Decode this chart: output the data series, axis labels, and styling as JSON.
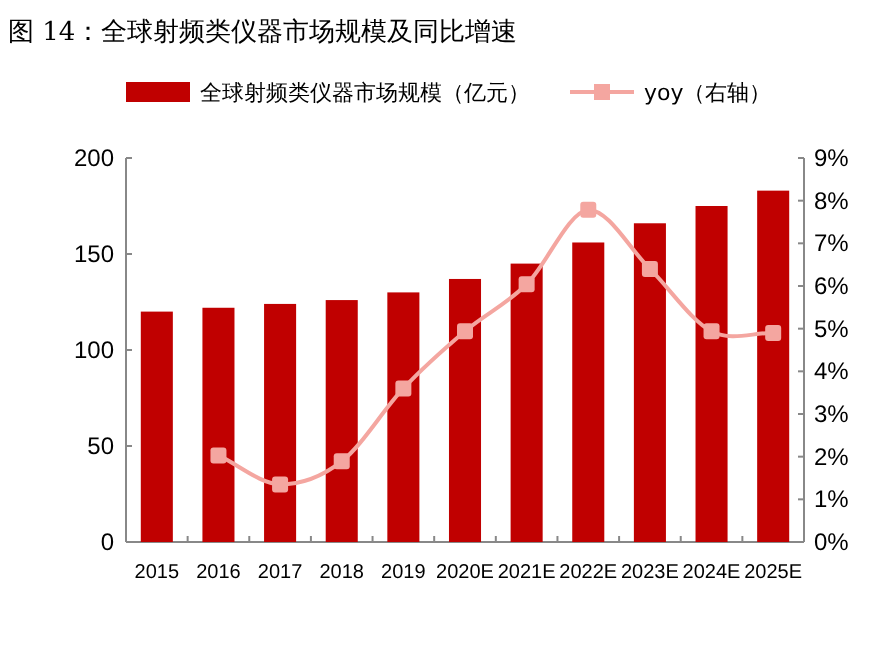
{
  "chart_data": {
    "type": "bar",
    "title": "图 14：全球射频类仪器市场规模及同比增速",
    "categories": [
      "2015",
      "2016",
      "2017",
      "2018",
      "2019",
      "2020E",
      "2021E",
      "2022E",
      "2023E",
      "2024E",
      "2025E"
    ],
    "series": [
      {
        "name": "全球射频类仪器市场规模（亿元）",
        "color": "#c00000",
        "values": [
          120,
          122,
          124,
          126,
          130,
          137,
          145,
          156,
          166,
          175,
          183
        ]
      },
      {
        "name": "yoy（右轴）",
        "type": "line",
        "axis": "y2",
        "color": "#f4a6a0",
        "marker": "square",
        "values": [
          null,
          2.03,
          1.35,
          1.89,
          3.6,
          4.94,
          6.04,
          7.79,
          6.4,
          4.94,
          4.9
        ]
      }
    ],
    "ylim": [
      0,
      200
    ],
    "yticks": [
      0,
      50,
      100,
      150,
      200
    ],
    "y2lim": [
      0,
      9
    ],
    "y2ticks": [
      {
        "value": 0,
        "label": "0%"
      },
      {
        "value": 1,
        "label": "1%"
      },
      {
        "value": 2,
        "label": "2%"
      },
      {
        "value": 3,
        "label": "3%"
      },
      {
        "value": 4,
        "label": "4%"
      },
      {
        "value": 5,
        "label": "5%"
      },
      {
        "value": 6,
        "label": "6%"
      },
      {
        "value": 7,
        "label": "7%"
      },
      {
        "value": 8,
        "label": "8%"
      },
      {
        "value": 9,
        "label": "9%"
      }
    ],
    "legend": "top",
    "grid": false
  }
}
